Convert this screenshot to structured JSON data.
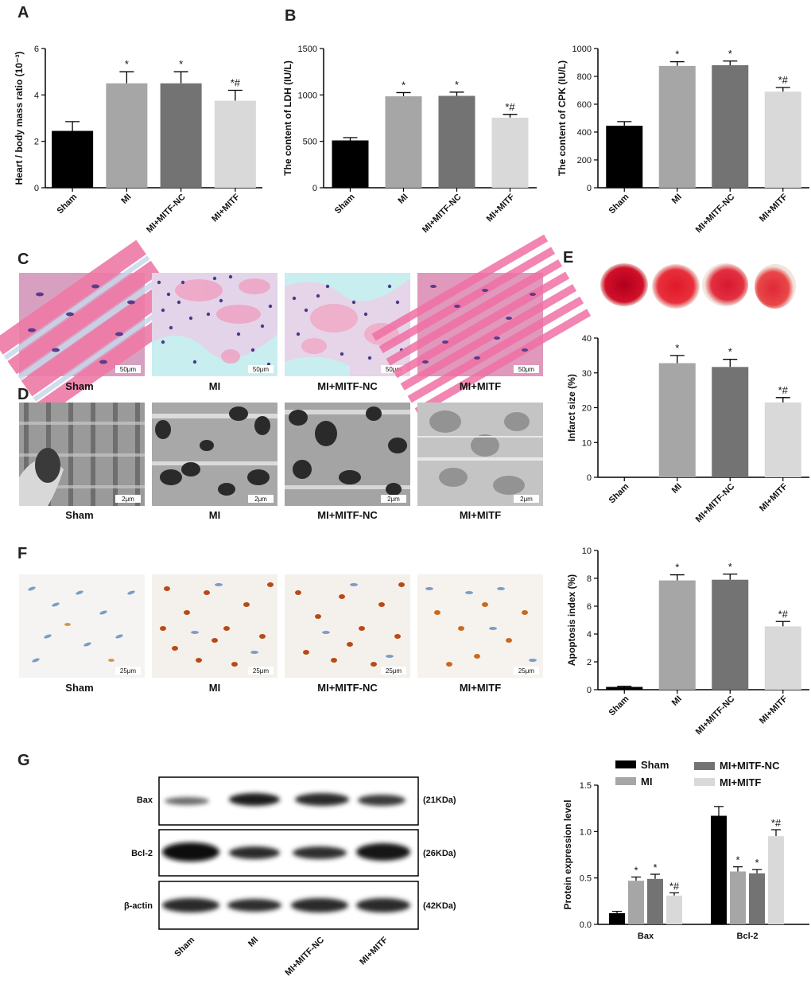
{
  "panels": {
    "A": "A",
    "B": "B",
    "C": "C",
    "D": "D",
    "E": "E",
    "F": "F",
    "G": "G"
  },
  "colors": {
    "Sham": "#000000",
    "MI": "#a6a6a6",
    "MI+MITF-NC": "#737373",
    "MI+MITF": "#d9d9d9"
  },
  "group_labels": [
    "Sham",
    "MI",
    "MI+MITF-NC",
    "MI+MITF"
  ],
  "micrograph_labels": {
    "C": [
      "Sham",
      "MI",
      "MI+MITF-NC",
      "MI+MITF"
    ],
    "D": [
      "Sham",
      "MI",
      "MI+MITF-NC",
      "MI+MITF"
    ],
    "F": [
      "Sham",
      "MI",
      "MI+MITF-NC",
      "MI+MITF"
    ]
  },
  "scale_bars": {
    "C": "50μm",
    "D": "2μm",
    "F": "25μm"
  },
  "western_blot": {
    "rows": [
      "Bax",
      "Bcl-2",
      "β-actin"
    ],
    "sizes": [
      "(21KDa)",
      "(26KDa)",
      "(42KDa)"
    ],
    "lanes": [
      "Sham",
      "MI",
      "MI+MITF-NC",
      "MI+MITF"
    ]
  },
  "chart_data": [
    {
      "id": "A",
      "type": "bar",
      "categories": [
        "Sham",
        "MI",
        "MI+MITF-NC",
        "MI+MITF"
      ],
      "values": [
        2.45,
        4.5,
        4.5,
        3.75
      ],
      "errors": [
        0.4,
        0.5,
        0.5,
        0.45
      ],
      "annotations": [
        "",
        "*",
        "*",
        "*#"
      ],
      "ylabel": "Heart / body mass ratio (10⁻³)",
      "ylim": [
        0,
        6
      ],
      "yticks": [
        0,
        2,
        4,
        6
      ]
    },
    {
      "id": "B1",
      "type": "bar",
      "categories": [
        "Sham",
        "MI",
        "MI+MITF-NC",
        "MI+MITF"
      ],
      "values": [
        510,
        985,
        990,
        755
      ],
      "errors": [
        30,
        40,
        40,
        35
      ],
      "annotations": [
        "",
        "*",
        "*",
        "*#"
      ],
      "ylabel": "The content of LDH (IU/L)",
      "ylim": [
        0,
        1500
      ],
      "yticks": [
        0,
        500,
        1000,
        1500
      ]
    },
    {
      "id": "B2",
      "type": "bar",
      "categories": [
        "Sham",
        "MI",
        "MI+MITF-NC",
        "MI+MITF"
      ],
      "values": [
        445,
        875,
        880,
        690
      ],
      "errors": [
        30,
        30,
        30,
        30
      ],
      "annotations": [
        "",
        "*",
        "*",
        "*#"
      ],
      "ylabel": "The content of CPK (IU/L)",
      "ylim": [
        0,
        1000
      ],
      "yticks": [
        0,
        200,
        400,
        600,
        800,
        1000
      ]
    },
    {
      "id": "E",
      "type": "bar",
      "categories": [
        "Sham",
        "MI",
        "MI+MITF-NC",
        "MI+MITF"
      ],
      "values": [
        0,
        32.8,
        31.7,
        21.5
      ],
      "errors": [
        0,
        2.2,
        2.2,
        1.4
      ],
      "annotations": [
        "",
        "*",
        "*",
        "*#"
      ],
      "ylabel": "Infarct size (%)",
      "ylim": [
        0,
        40
      ],
      "yticks": [
        0,
        10,
        20,
        30,
        40
      ]
    },
    {
      "id": "F",
      "type": "bar",
      "categories": [
        "Sham",
        "MI",
        "MI+MITF-NC",
        "MI+MITF"
      ],
      "values": [
        0.2,
        7.85,
        7.9,
        4.55
      ],
      "errors": [
        0.05,
        0.4,
        0.4,
        0.35
      ],
      "annotations": [
        "",
        "*",
        "*",
        "*#"
      ],
      "ylabel": "Apoptosis index (%)",
      "ylim": [
        0,
        10
      ],
      "yticks": [
        0,
        2,
        4,
        6,
        8,
        10
      ]
    },
    {
      "id": "G",
      "type": "bar",
      "categories": [
        "Bax",
        "Bcl-2"
      ],
      "series": [
        {
          "name": "Sham",
          "values": [
            0.12,
            1.17
          ],
          "errors": [
            0.02,
            0.1
          ],
          "annotations": [
            "",
            ""
          ]
        },
        {
          "name": "MI",
          "values": [
            0.47,
            0.57
          ],
          "errors": [
            0.04,
            0.05
          ],
          "annotations": [
            "*",
            "*"
          ]
        },
        {
          "name": "MI+MITF-NC",
          "values": [
            0.49,
            0.55
          ],
          "errors": [
            0.05,
            0.04
          ],
          "annotations": [
            "*",
            "*"
          ]
        },
        {
          "name": "MI+MITF",
          "values": [
            0.31,
            0.95
          ],
          "errors": [
            0.03,
            0.07
          ],
          "annotations": [
            "*#",
            "*#"
          ]
        }
      ],
      "ylabel": "Protein expression level",
      "ylim": [
        0,
        1.5
      ],
      "yticks": [
        "0.0",
        "0.5",
        "1.0",
        "1.5"
      ],
      "legend": "top"
    }
  ]
}
